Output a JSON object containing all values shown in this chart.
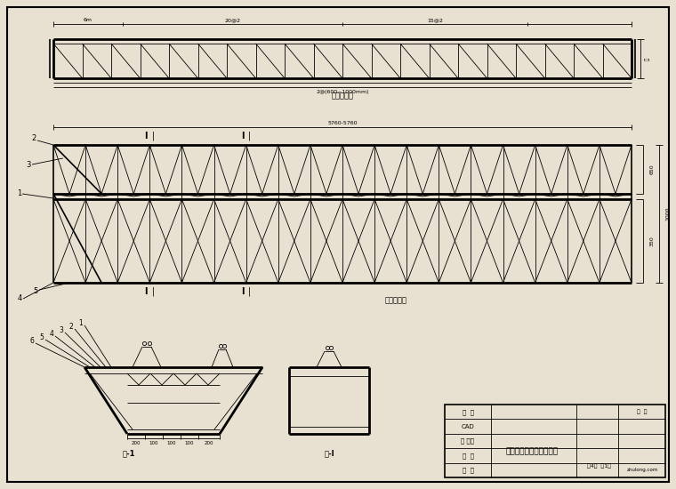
{
  "bg_color": "#e8e0d0",
  "line_color": "#000000",
  "title_text": "预制钢筋吊架结构施工图",
  "view1_caption": "桁架侧视图",
  "view2_caption": "桁架俯视图",
  "view3_label_l": "剖-1",
  "view3_label_r": "剖-I",
  "table_rows": [
    "设  计",
    "CAD",
    "监 理员",
    "审  核",
    "复  核"
  ],
  "page_text": "共4张  第1张",
  "watermark": "zhulong.com",
  "dim1_parts": [
    "6m",
    "20@2",
    "15@2"
  ],
  "dim2_text": "5760-5760",
  "dim_bottom": "2@(600~1000mm)"
}
